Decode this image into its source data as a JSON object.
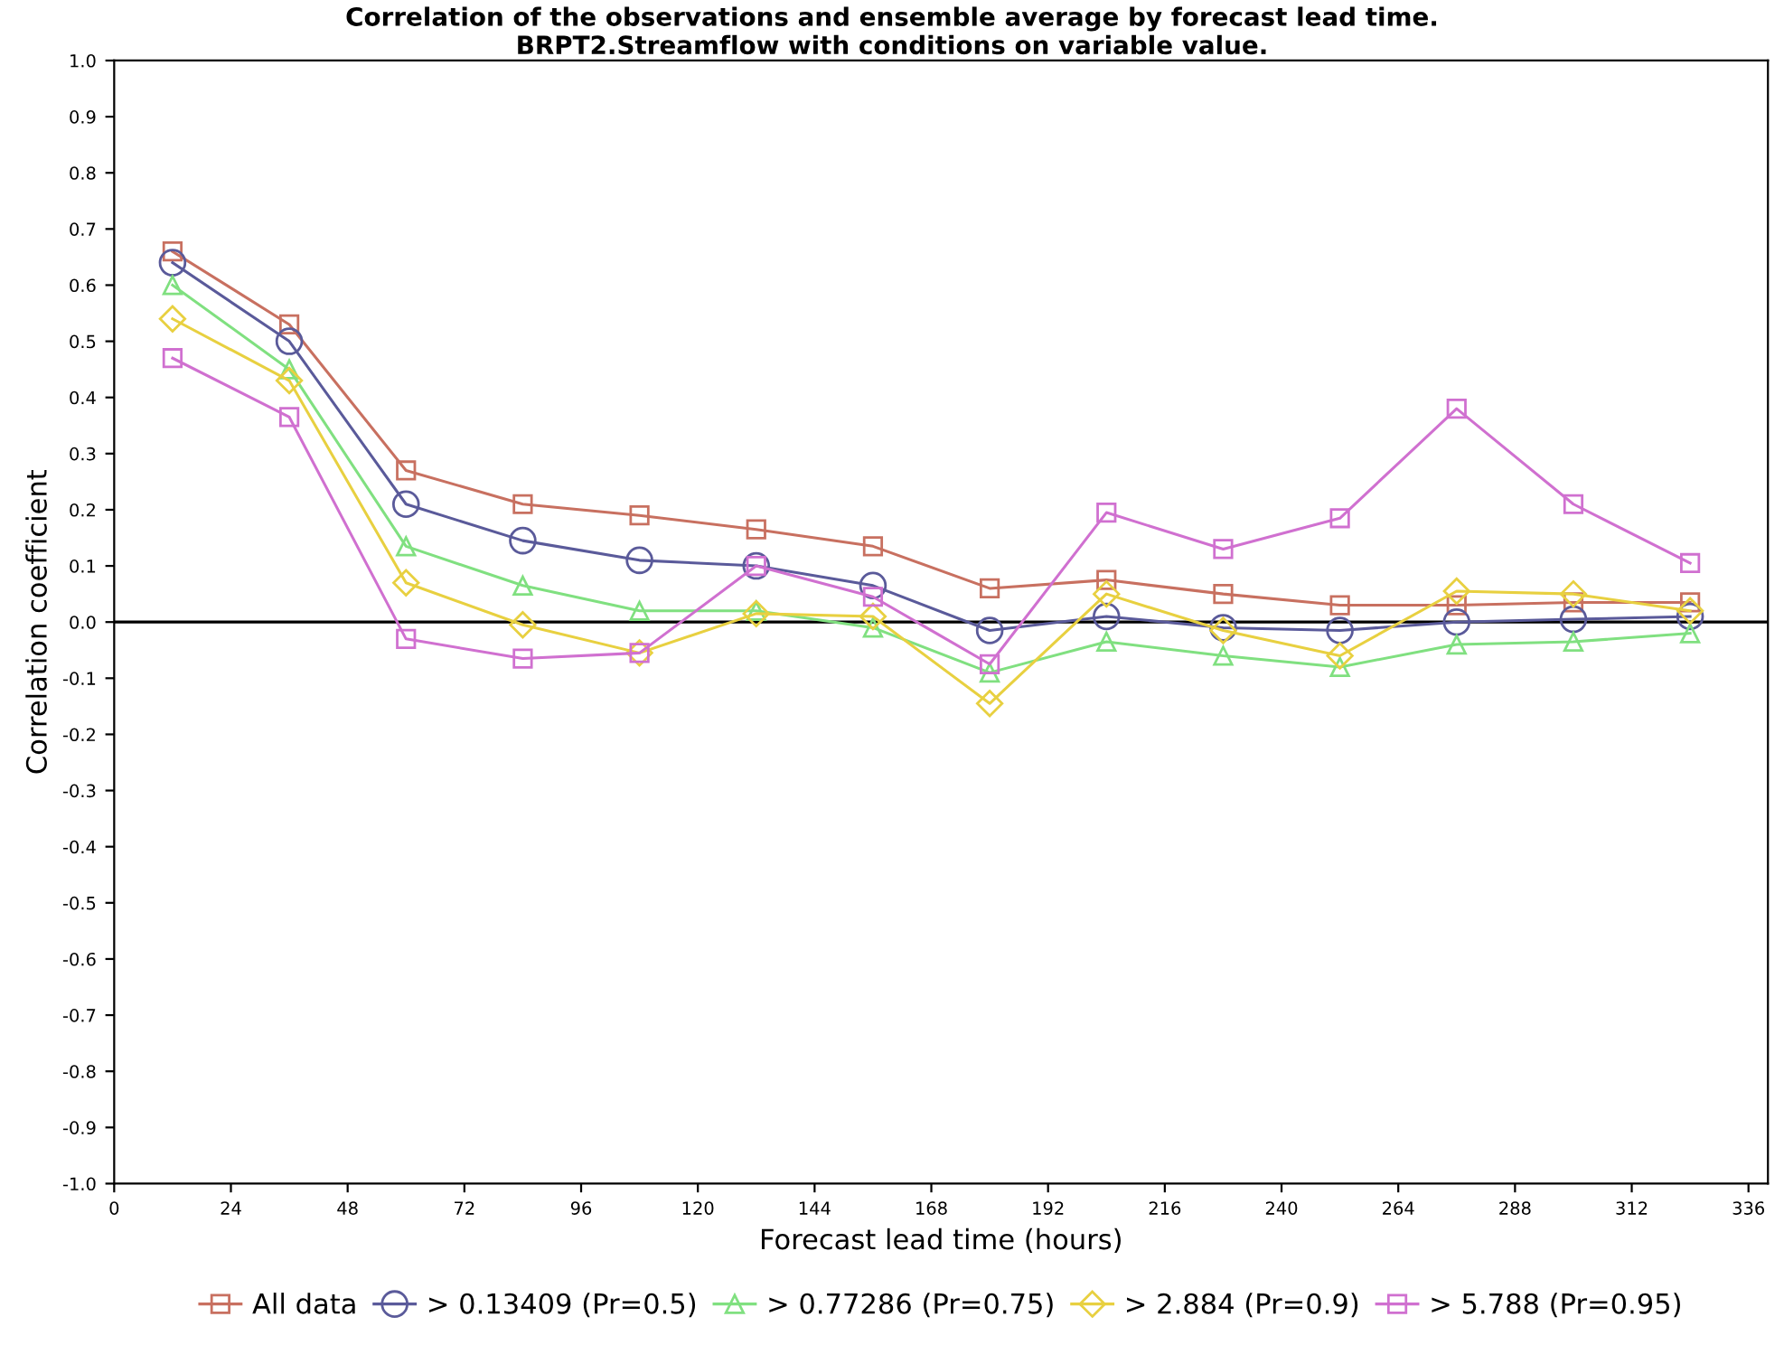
{
  "chart_data": {
    "type": "line",
    "title": "Correlation of the observations and ensemble average by forecast lead time.\nBRPT2.Streamflow with conditions on variable value.",
    "xlabel": "Forecast lead time (hours)",
    "ylabel": "Correlation coefficient",
    "x": [
      12,
      36,
      60,
      84,
      108,
      132,
      156,
      180,
      204,
      228,
      252,
      276,
      300,
      324
    ],
    "xlim": [
      0,
      340
    ],
    "xticks": [
      0,
      24,
      48,
      72,
      96,
      120,
      144,
      168,
      192,
      216,
      240,
      264,
      288,
      312,
      336
    ],
    "ylim": [
      -1.0,
      1.0
    ],
    "yticks": [
      {
        "value": -1.0,
        "label": "-1.0"
      },
      {
        "value": -0.9,
        "label": "-0.9"
      },
      {
        "value": -0.8,
        "label": "-0.8"
      },
      {
        "value": -0.7,
        "label": "-0.7"
      },
      {
        "value": -0.6,
        "label": "-0.6"
      },
      {
        "value": -0.5,
        "label": "-0.5"
      },
      {
        "value": -0.4,
        "label": "-0.4"
      },
      {
        "value": -0.3,
        "label": "-0.3"
      },
      {
        "value": -0.2,
        "label": "-0.2"
      },
      {
        "value": -0.1,
        "label": "-0.1"
      },
      {
        "value": 0.0,
        "label": "0.0"
      },
      {
        "value": 0.1,
        "label": "0.1"
      },
      {
        "value": 0.2,
        "label": "0.2"
      },
      {
        "value": 0.3,
        "label": "0.3"
      },
      {
        "value": 0.4,
        "label": "0.4"
      },
      {
        "value": 0.5,
        "label": "0.5"
      },
      {
        "value": 0.6,
        "label": "0.6"
      },
      {
        "value": 0.7,
        "label": "0.7"
      },
      {
        "value": 0.8,
        "label": "0.8"
      },
      {
        "value": 0.9,
        "label": "0.9"
      },
      {
        "value": 1.0,
        "label": "1.0"
      }
    ],
    "grid": false,
    "legend": "bottom",
    "line_style": "solid",
    "ref_lines": [
      {
        "axis": "y",
        "value": 0,
        "color": "#000000"
      }
    ],
    "series": [
      {
        "name": "All data",
        "color": "#c87060",
        "marker": "square",
        "values": [
          0.66,
          0.53,
          0.27,
          0.21,
          0.19,
          0.165,
          0.135,
          0.06,
          0.075,
          0.05,
          0.03,
          0.03,
          0.035,
          0.035
        ]
      },
      {
        "name": "> 0.13409 (Pr=0.5)",
        "color": "#5a5a9a",
        "marker": "circle",
        "values": [
          0.64,
          0.5,
          0.21,
          0.145,
          0.11,
          0.1,
          0.065,
          -0.015,
          0.01,
          -0.01,
          -0.015,
          0.0,
          0.005,
          0.01
        ]
      },
      {
        "name": "> 0.77286 (Pr=0.75)",
        "color": "#80e080",
        "marker": "triangle",
        "values": [
          0.6,
          0.45,
          0.135,
          0.065,
          0.02,
          0.02,
          -0.01,
          -0.09,
          -0.035,
          -0.06,
          -0.08,
          -0.04,
          -0.035,
          -0.02
        ]
      },
      {
        "name": "> 2.884 (Pr=0.9)",
        "color": "#e8d040",
        "marker": "diamond",
        "values": [
          0.54,
          0.43,
          0.07,
          -0.005,
          -0.055,
          0.015,
          0.01,
          -0.145,
          0.05,
          -0.015,
          -0.06,
          0.055,
          0.05,
          0.02
        ]
      },
      {
        "name": "> 5.788 (Pr=0.95)",
        "color": "#d070d0",
        "marker": "square",
        "values": [
          0.47,
          0.365,
          -0.03,
          -0.065,
          -0.055,
          0.1,
          0.045,
          -0.075,
          0.195,
          0.13,
          0.185,
          0.38,
          0.21,
          0.105
        ]
      }
    ]
  }
}
